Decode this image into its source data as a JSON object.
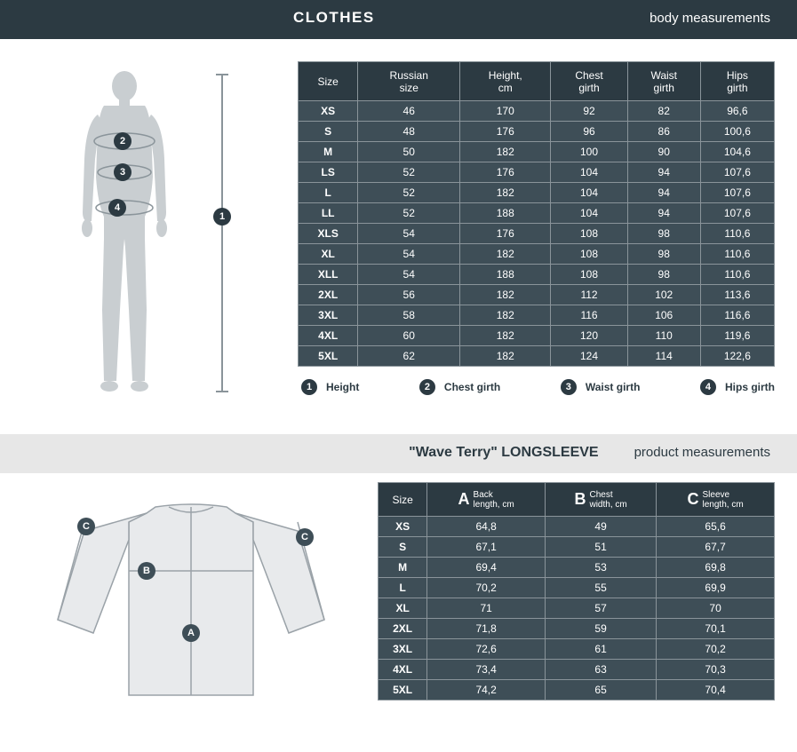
{
  "clothes_header": {
    "title": "CLOTHES",
    "subtitle": "body measurements"
  },
  "body_table": {
    "columns": [
      "Size",
      "Russian size",
      "Height, cm",
      "Chest girth",
      "Waist girth",
      "Hips girth"
    ],
    "rows": [
      [
        "XS",
        "46",
        "170",
        "92",
        "82",
        "96,6"
      ],
      [
        "S",
        "48",
        "176",
        "96",
        "86",
        "100,6"
      ],
      [
        "M",
        "50",
        "182",
        "100",
        "90",
        "104,6"
      ],
      [
        "LS",
        "52",
        "176",
        "104",
        "94",
        "107,6"
      ],
      [
        "L",
        "52",
        "182",
        "104",
        "94",
        "107,6"
      ],
      [
        "LL",
        "52",
        "188",
        "104",
        "94",
        "107,6"
      ],
      [
        "XLS",
        "54",
        "176",
        "108",
        "98",
        "110,6"
      ],
      [
        "XL",
        "54",
        "182",
        "108",
        "98",
        "110,6"
      ],
      [
        "XLL",
        "54",
        "188",
        "108",
        "98",
        "110,6"
      ],
      [
        "2XL",
        "56",
        "182",
        "112",
        "102",
        "113,6"
      ],
      [
        "3XL",
        "58",
        "182",
        "116",
        "106",
        "116,6"
      ],
      [
        "4XL",
        "60",
        "182",
        "120",
        "110",
        "119,6"
      ],
      [
        "5XL",
        "62",
        "182",
        "124",
        "114",
        "122,6"
      ]
    ]
  },
  "legend": [
    {
      "num": "1",
      "label": "Height"
    },
    {
      "num": "2",
      "label": "Chest girth"
    },
    {
      "num": "3",
      "label": "Waist girth"
    },
    {
      "num": "4",
      "label": "Hips girth"
    }
  ],
  "product_header": {
    "title": "\"Wave Terry\" LONGSLEEVE",
    "subtitle": "product measurements"
  },
  "product_table": {
    "columns": [
      {
        "key": "Size"
      },
      {
        "big": "A",
        "small1": "Back",
        "small2": "length, cm"
      },
      {
        "big": "B",
        "small1": "Chest",
        "small2": "width, cm"
      },
      {
        "big": "C",
        "small1": "Sleeve",
        "small2": "length, cm"
      }
    ],
    "rows": [
      [
        "XS",
        "64,8",
        "49",
        "65,6"
      ],
      [
        "S",
        "67,1",
        "51",
        "67,7"
      ],
      [
        "M",
        "69,4",
        "53",
        "69,8"
      ],
      [
        "L",
        "70,2",
        "55",
        "69,9"
      ],
      [
        "XL",
        "71",
        "57",
        "70"
      ],
      [
        "2XL",
        "71,8",
        "59",
        "70,1"
      ],
      [
        "3XL",
        "72,6",
        "61",
        "70,2"
      ],
      [
        "4XL",
        "73,4",
        "63",
        "70,3"
      ],
      [
        "5XL",
        "74,2",
        "65",
        "70,4"
      ]
    ]
  },
  "colors": {
    "header_bg": "#2c3a42",
    "row_bg": "#3e4e57",
    "border": "#8a949a",
    "silhouette": "#c9ced1",
    "gray_section": "#e7e7e7"
  }
}
